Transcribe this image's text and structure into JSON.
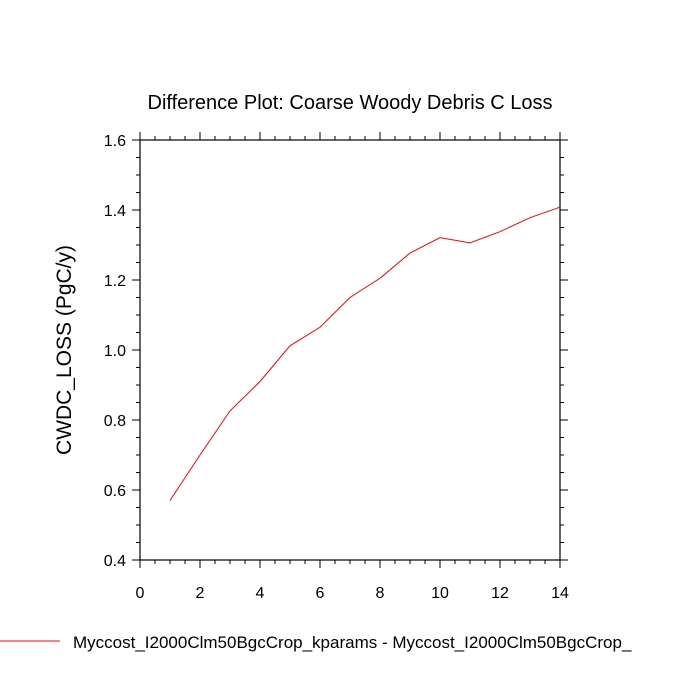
{
  "chart_data": {
    "type": "line",
    "title": "Difference Plot: Coarse Woody Debris C Loss",
    "xlabel": "",
    "ylabel": "CWDC_LOSS  (PgC/y)",
    "xlim": [
      0,
      14
    ],
    "ylim": [
      0.4,
      1.6
    ],
    "xticks": [
      0,
      2,
      4,
      6,
      8,
      10,
      12,
      14
    ],
    "yticks": [
      0.4,
      0.6,
      0.8,
      1.0,
      1.2,
      1.4,
      1.6
    ],
    "xtick_labels": [
      "0",
      "2",
      "4",
      "6",
      "8",
      "10",
      "12",
      "14"
    ],
    "ytick_labels": [
      "0.4",
      "0.6",
      "0.8",
      "1.0",
      "1.2",
      "1.4",
      "1.6"
    ],
    "grid": false,
    "legend_position": "bottom",
    "series": [
      {
        "name": "Myccost_I2000Clm50BgcCrop_kparams - Myccost_I2000Clm50BgcCrop_",
        "color": "#ff0000",
        "x": [
          1,
          2,
          3,
          4,
          5,
          6,
          7,
          8,
          9,
          10,
          11,
          12,
          13,
          14
        ],
        "values": [
          0.57,
          0.7,
          0.826,
          0.91,
          1.012,
          1.065,
          1.15,
          1.205,
          1.277,
          1.321,
          1.306,
          1.338,
          1.378,
          1.408
        ]
      }
    ]
  }
}
